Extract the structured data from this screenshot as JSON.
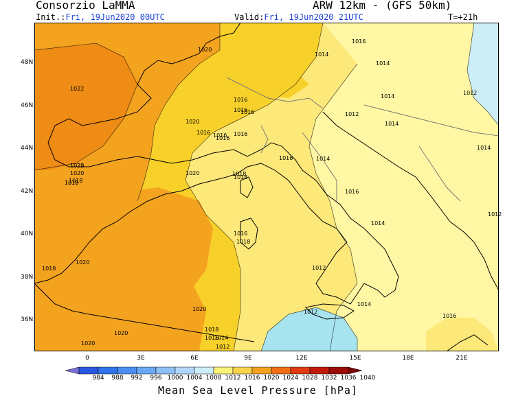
{
  "header": {
    "organization": "Consorzio LaMMA",
    "model": "ARW 12km - (GFS 50km)",
    "init_label": "Init.:",
    "init_value": "Fri, 19Jun2020 00UTC",
    "valid_label": "Valid:",
    "valid_value": "Fri, 19Jun2020 21UTC",
    "lead_time": "T=+21h"
  },
  "axes": {
    "lat_labels": [
      "48N",
      "46N",
      "44N",
      "42N",
      "40N",
      "38N",
      "36N"
    ],
    "lon_labels": [
      "0",
      "3E",
      "6E",
      "9E",
      "12E",
      "15E",
      "18E",
      "21E"
    ]
  },
  "isobar_labels": [
    {
      "text": "1020"
    },
    {
      "text": "1022"
    },
    {
      "text": "1020"
    },
    {
      "text": "1018"
    },
    {
      "text": "1016"
    },
    {
      "text": "1016"
    },
    {
      "text": "1016"
    },
    {
      "text": "1014"
    },
    {
      "text": "1012"
    },
    {
      "text": "1016"
    },
    {
      "text": "1020"
    },
    {
      "text": "1018"
    },
    {
      "text": "1020"
    },
    {
      "text": "1018"
    },
    {
      "text": "1016"
    },
    {
      "text": "1016"
    },
    {
      "text": "1016"
    },
    {
      "text": "1016"
    },
    {
      "text": "1014"
    },
    {
      "text": "1014"
    },
    {
      "text": "1014"
    },
    {
      "text": "1012"
    },
    {
      "text": "1022"
    },
    {
      "text": "1020"
    },
    {
      "text": "1018"
    },
    {
      "text": "1016"
    },
    {
      "text": "1018"
    },
    {
      "text": "1016"
    },
    {
      "text": "1014"
    },
    {
      "text": "1012"
    },
    {
      "text": "1014"
    },
    {
      "text": "1018"
    },
    {
      "text": "1020"
    },
    {
      "text": "1018"
    },
    {
      "text": "1020"
    },
    {
      "text": "1020"
    },
    {
      "text": "1020"
    },
    {
      "text": "1018"
    },
    {
      "text": "1016"
    },
    {
      "text": "1014"
    },
    {
      "text": "1012"
    },
    {
      "text": "1012"
    },
    {
      "text": "1014"
    },
    {
      "text": "1016"
    },
    {
      "text": "1012"
    },
    {
      "text": "1014"
    },
    {
      "text": "1016"
    }
  ],
  "colorbar": {
    "title": "Mean Sea Level Pressure [hPa]",
    "ticks": [
      "984",
      "988",
      "992",
      "996",
      "1000",
      "1004",
      "1008",
      "1012",
      "1016",
      "1020",
      "1024",
      "1028",
      "1032",
      "1036",
      "1040"
    ],
    "colors": [
      "#7a6fd8",
      "#2a57e0",
      "#2f73ea",
      "#4a8ff0",
      "#6aa8f4",
      "#8fc0f7",
      "#b2d7fa",
      "#cdeef7",
      "#fdf37a",
      "#f9d34a",
      "#f3a020",
      "#ef6f16",
      "#e03a10",
      "#c01a0c",
      "#9c0a06",
      "#7a0404"
    ]
  },
  "fields": {
    "sea": "#a8e4f0",
    "p1012": "#cdeef7",
    "p1014": "#fff7a3",
    "p1016": "#fde87a",
    "p1018": "#f7d02a",
    "p1020": "#f4a31f",
    "p1022": "#ee8c15"
  }
}
